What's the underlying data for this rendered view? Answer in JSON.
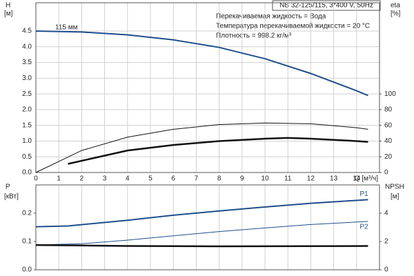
{
  "chart_data": [
    {
      "type": "line",
      "title": "NB 32-125/115, 3*400 V, 50Hz",
      "annotations": [
        "Перекачиваемая жидкость = Вода",
        "Температура перекачиваемой жидкости = 20 °C",
        "Плотность = 998.2 кг/м³"
      ],
      "curve_label": "115 мм",
      "xlabel": "Q [м³/ч]",
      "ylabel": "H",
      "yunit": "[м]",
      "y2label": "eta",
      "y2unit": "[%]",
      "xlim": [
        0,
        15
      ],
      "xticks": [
        0,
        1,
        2,
        3,
        4,
        5,
        6,
        7,
        8,
        9,
        10,
        11,
        12,
        13,
        14
      ],
      "ylim": [
        0,
        5.4
      ],
      "yticks": [
        {
          "value": 0,
          "label": "0.0"
        },
        0.5,
        {
          "value": 1,
          "label": "1.0"
        },
        1.5,
        {
          "value": 2,
          "label": "2.0"
        },
        2.5,
        {
          "value": 3,
          "label": "3.0"
        },
        3.5,
        {
          "value": 4,
          "label": "4.0"
        },
        4.5
      ],
      "y2lim": [
        0,
        216
      ],
      "y2ticks": [
        0,
        20,
        40,
        60,
        80,
        100
      ],
      "grid": "both",
      "series": [
        {
          "color": "#1f4e8c",
          "linewidth": 2,
          "x": [
            0,
            2,
            4,
            6,
            8,
            10,
            12,
            14,
            14.5
          ],
          "values": [
            4.5,
            4.47,
            4.38,
            4.22,
            3.98,
            3.62,
            3.15,
            2.6,
            2.45
          ]
        },
        {
          "color": "#111111",
          "linewidth": 1,
          "axis": "y2",
          "x": [
            0,
            2,
            4,
            6,
            8,
            10,
            12,
            14,
            14.5
          ],
          "values": [
            0,
            28,
            45,
            55,
            61,
            63,
            62,
            57,
            55
          ]
        },
        {
          "color": "#111111",
          "linewidth": 2.5,
          "axis": "y2",
          "x": [
            1.4,
            4,
            6,
            8,
            10,
            11,
            12,
            14,
            14.5
          ],
          "values": [
            11,
            28,
            35,
            40,
            43,
            44,
            43,
            40,
            39
          ]
        }
      ]
    },
    {
      "type": "line",
      "ylabel": "P",
      "yunit": "[кВт]",
      "y2label": "NPSH",
      "y2unit": "[м]",
      "xlim": [
        0,
        15
      ],
      "ylim": [
        0,
        0.3
      ],
      "yticks": [
        {
          "value": 0,
          "label": "0.0"
        },
        0.1,
        0.2
      ],
      "y2lim": [
        0,
        6
      ],
      "y2ticks": [
        0,
        2,
        4
      ],
      "grid": "x",
      "series": [
        {
          "name": "P1",
          "color": "#1f4e8c",
          "linewidth": 2,
          "x": [
            0,
            1.4,
            4,
            6,
            8,
            10,
            12,
            14.5
          ],
          "values": [
            0.152,
            0.155,
            0.175,
            0.193,
            0.208,
            0.222,
            0.235,
            0.248
          ]
        },
        {
          "name": "P2",
          "color": "#1f4e8c",
          "linewidth": 1,
          "x": [
            0,
            2,
            4,
            6,
            8,
            10,
            12,
            14.5
          ],
          "values": [
            0.088,
            0.092,
            0.105,
            0.12,
            0.135,
            0.148,
            0.16,
            0.171
          ]
        },
        {
          "color": "#111111",
          "linewidth": 2.5,
          "axis": "y2",
          "x": [
            0,
            2,
            4,
            8,
            14.5
          ],
          "values": [
            1.75,
            1.72,
            1.68,
            1.66,
            1.68
          ]
        }
      ]
    }
  ]
}
